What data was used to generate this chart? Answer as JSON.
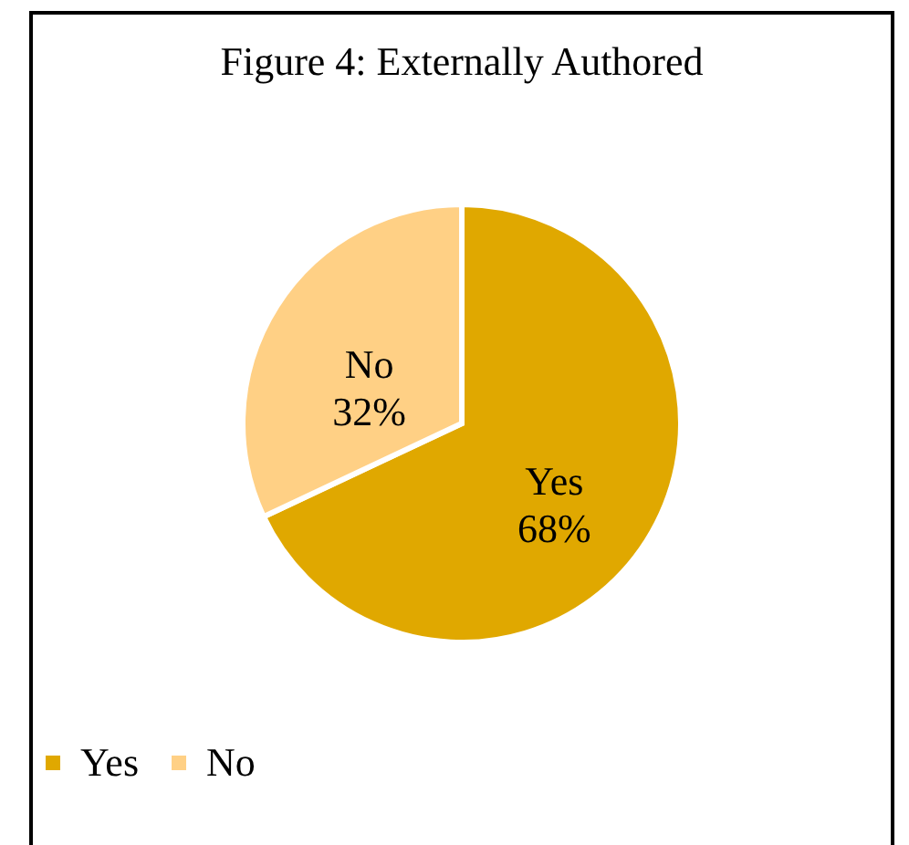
{
  "chart_data": {
    "type": "pie",
    "title": "Figure 4: Externally Authored",
    "categories": [
      "Yes",
      "No"
    ],
    "values": [
      68,
      32
    ],
    "value_labels": [
      "68%",
      "32%"
    ],
    "colors": [
      "#e0a800",
      "#ffd085"
    ],
    "legend": "bottom"
  }
}
